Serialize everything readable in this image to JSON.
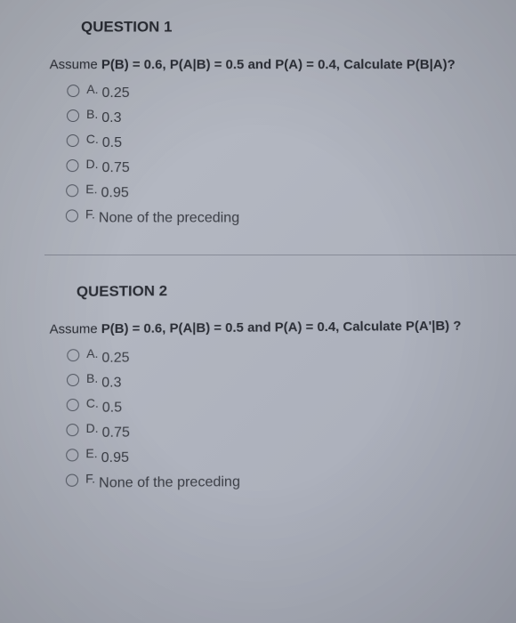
{
  "questions": [
    {
      "title": "QUESTION 1",
      "prompt_prefix": "Assume ",
      "prompt_bold": "P(B) = 0.6, P(A|B) = 0.5 and P(A) = 0.4, Calculate P(B|A)?",
      "options": [
        {
          "letter": "A.",
          "text": "0.25"
        },
        {
          "letter": "B.",
          "text": "0.3"
        },
        {
          "letter": "C.",
          "text": "0.5"
        },
        {
          "letter": "D.",
          "text": "0.75"
        },
        {
          "letter": "E.",
          "text": "0.95"
        },
        {
          "letter": "F.",
          "text": "None of the preceding"
        }
      ]
    },
    {
      "title": "QUESTION 2",
      "prompt_prefix": "Assume ",
      "prompt_bold": "P(B) = 0.6, P(A|B) = 0.5 and P(A) = 0.4, Calculate P(A'|B) ?",
      "options": [
        {
          "letter": "A.",
          "text": "0.25"
        },
        {
          "letter": "B.",
          "text": "0.3"
        },
        {
          "letter": "C.",
          "text": "0.5"
        },
        {
          "letter": "D.",
          "text": "0.75"
        },
        {
          "letter": "E.",
          "text": "0.95"
        },
        {
          "letter": "F.",
          "text": "None of the preceding"
        }
      ]
    }
  ],
  "styling": {
    "background_gradient_start": "#b8bcc5",
    "background_gradient_end": "#a8acb8",
    "title_color": "#2a2d35",
    "text_color": "#3a3d45",
    "radio_border_color": "#555a65",
    "divider_color": "#888c98",
    "title_fontsize": 17,
    "prompt_fontsize": 15,
    "option_fontsize": 15
  }
}
